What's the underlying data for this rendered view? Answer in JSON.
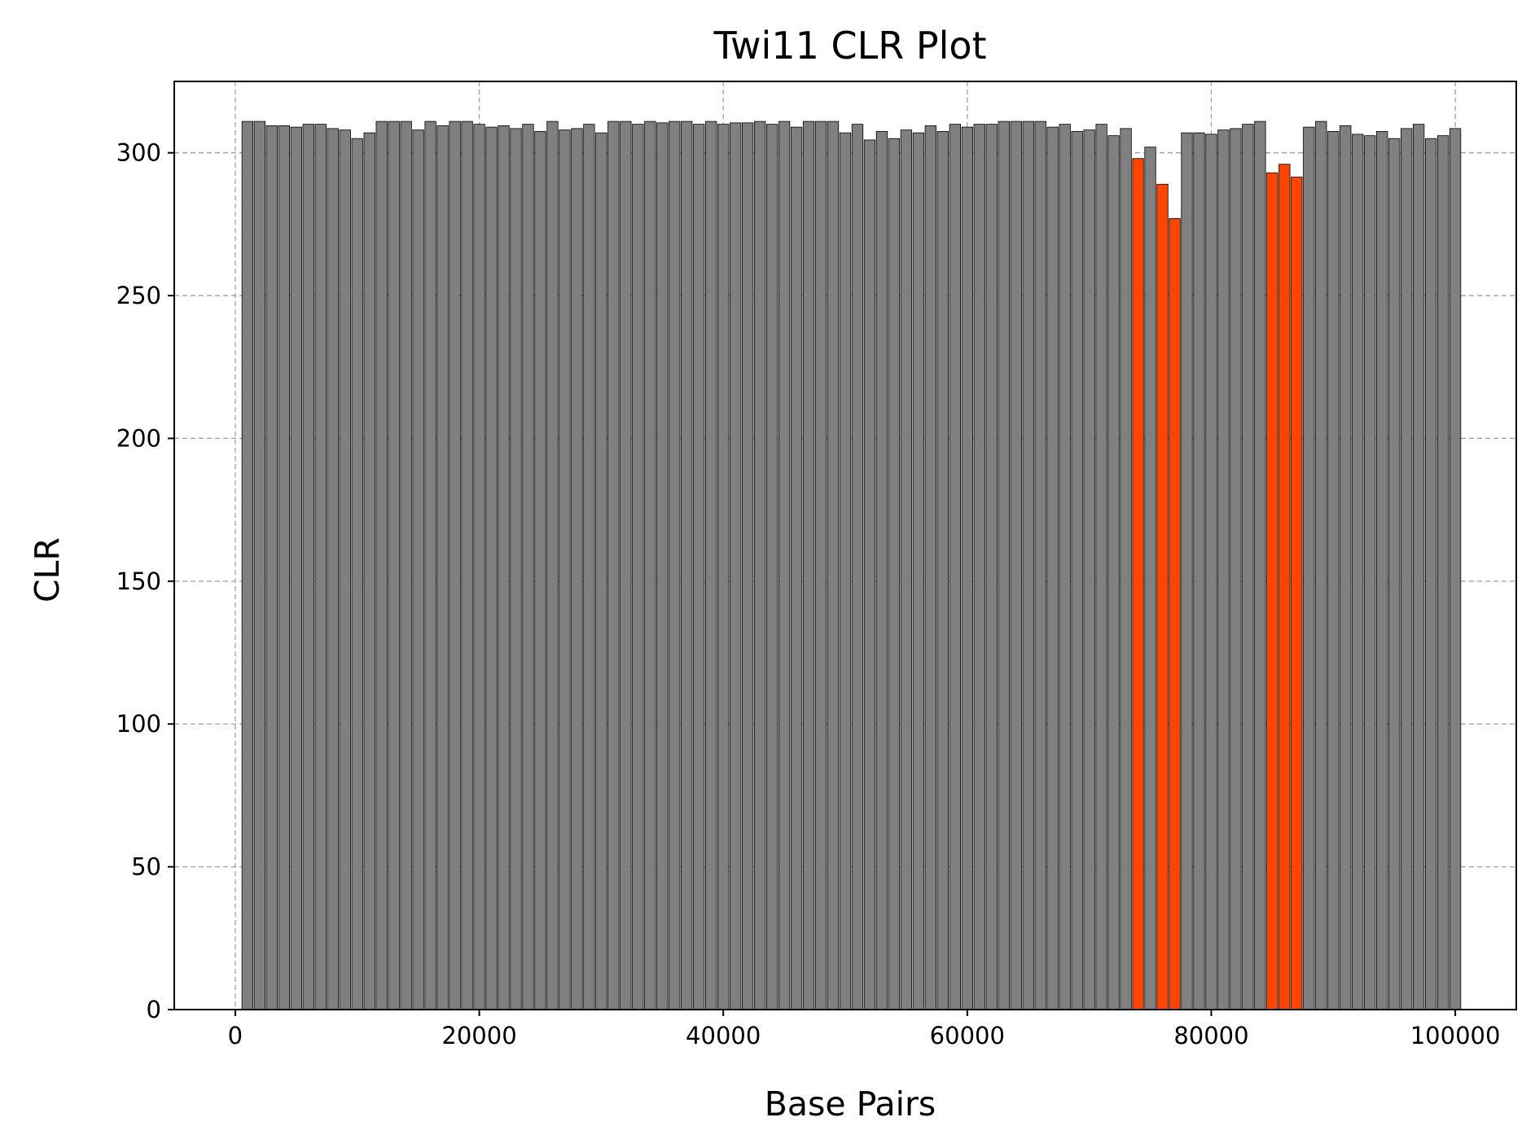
{
  "chart_data": {
    "type": "bar",
    "title": "Twi11 CLR Plot",
    "xlabel": "Base Pairs",
    "ylabel": "CLR",
    "xlim": [
      -5000,
      105000
    ],
    "ylim": [
      0,
      325
    ],
    "xticks": [
      0,
      20000,
      40000,
      60000,
      80000,
      100000
    ],
    "yticks": [
      0,
      50,
      100,
      150,
      200,
      250,
      300
    ],
    "grid": true,
    "bar_width": 900,
    "colors": {
      "normal": "#808080",
      "highlight": "#ff4500",
      "edge": "#000000"
    },
    "x": [
      1000,
      2000,
      3000,
      4000,
      5000,
      6000,
      7000,
      8000,
      9000,
      10000,
      11000,
      12000,
      13000,
      14000,
      15000,
      16000,
      17000,
      18000,
      19000,
      20000,
      21000,
      22000,
      23000,
      24000,
      25000,
      26000,
      27000,
      28000,
      29000,
      30000,
      31000,
      32000,
      33000,
      34000,
      35000,
      36000,
      37000,
      38000,
      39000,
      40000,
      41000,
      42000,
      43000,
      44000,
      45000,
      46000,
      47000,
      48000,
      49000,
      50000,
      51000,
      52000,
      53000,
      54000,
      55000,
      56000,
      57000,
      58000,
      59000,
      60000,
      61000,
      62000,
      63000,
      64000,
      65000,
      66000,
      67000,
      68000,
      69000,
      70000,
      71000,
      72000,
      73000,
      74000,
      75000,
      76000,
      77000,
      78000,
      79000,
      80000,
      81000,
      82000,
      83000,
      84000,
      85000,
      86000,
      87000,
      88000,
      89000,
      90000,
      91000,
      92000,
      93000,
      94000,
      95000,
      96000,
      97000,
      98000,
      99000,
      100000
    ],
    "values": [
      311,
      311,
      309.5,
      309.5,
      309,
      310,
      310,
      308.5,
      308,
      305,
      307,
      311,
      311,
      311,
      308,
      311,
      309.5,
      311,
      311,
      310,
      309,
      309.5,
      308.5,
      310,
      307.5,
      311,
      308,
      308.5,
      310,
      307,
      311,
      311,
      310,
      311,
      310.5,
      311,
      311,
      310,
      311,
      310,
      310.5,
      310.5,
      311,
      310,
      311,
      309,
      311,
      311,
      311,
      307,
      310,
      304.5,
      307.5,
      305,
      308,
      307,
      309.5,
      307.5,
      310,
      309,
      310,
      310,
      311,
      311,
      311,
      311,
      309,
      310,
      307.5,
      308,
      310,
      306,
      308.5,
      298,
      302,
      289,
      277,
      307,
      307,
      306.5,
      308,
      308.5,
      310,
      311,
      293,
      296,
      291.5,
      309,
      311,
      307.5,
      309.5,
      306.5,
      306,
      307.5,
      305,
      308.5,
      310,
      305,
      306,
      308.5
    ],
    "highlighted": [
      false,
      false,
      false,
      false,
      false,
      false,
      false,
      false,
      false,
      false,
      false,
      false,
      false,
      false,
      false,
      false,
      false,
      false,
      false,
      false,
      false,
      false,
      false,
      false,
      false,
      false,
      false,
      false,
      false,
      false,
      false,
      false,
      false,
      false,
      false,
      false,
      false,
      false,
      false,
      false,
      false,
      false,
      false,
      false,
      false,
      false,
      false,
      false,
      false,
      false,
      false,
      false,
      false,
      false,
      false,
      false,
      false,
      false,
      false,
      false,
      false,
      false,
      false,
      false,
      false,
      false,
      false,
      false,
      false,
      false,
      false,
      false,
      false,
      true,
      false,
      true,
      true,
      false,
      false,
      false,
      false,
      false,
      false,
      false,
      true,
      true,
      true,
      false,
      false,
      false,
      false,
      false,
      false,
      false,
      false,
      false,
      false,
      false,
      false,
      false
    ]
  }
}
